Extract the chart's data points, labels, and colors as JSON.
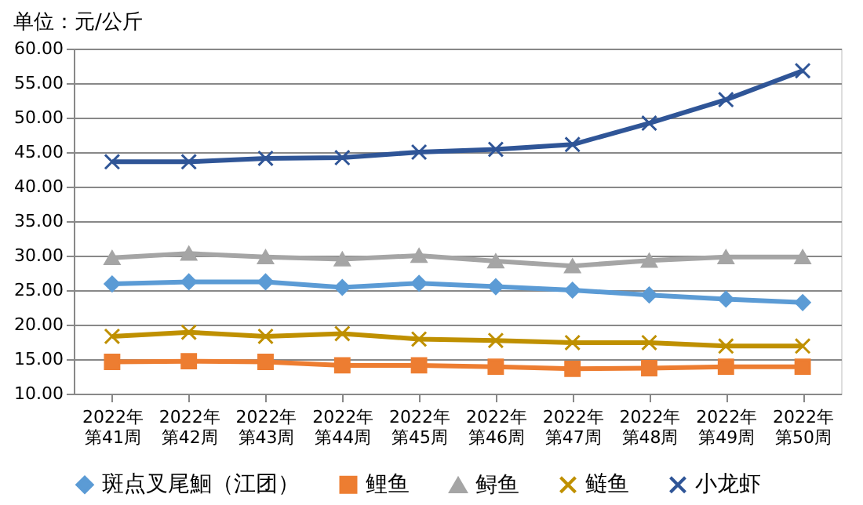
{
  "chart_data": {
    "type": "line",
    "title": "单位：元/公斤",
    "categories": [
      "2022年第41周",
      "2022年第42周",
      "2022年第43周",
      "2022年第44周",
      "2022年第45周",
      "2022年第46周",
      "2022年第47周",
      "2022年第48周",
      "2022年第49周",
      "2022年第50周"
    ],
    "series": [
      {
        "name": "斑点叉尾鮰（江团）",
        "color": "#5b9bd5",
        "marker": "diamond",
        "values": [
          25.9,
          26.2,
          26.2,
          25.4,
          26.0,
          25.5,
          25.0,
          24.3,
          23.7,
          23.2
        ]
      },
      {
        "name": "鲤鱼",
        "color": "#ed7d31",
        "marker": "square",
        "values": [
          14.6,
          14.7,
          14.6,
          14.1,
          14.1,
          13.9,
          13.6,
          13.7,
          13.9,
          13.9
        ]
      },
      {
        "name": "鲟鱼",
        "color": "#a5a5a5",
        "marker": "triangle",
        "values": [
          29.7,
          30.3,
          29.8,
          29.5,
          30.0,
          29.2,
          28.5,
          29.3,
          29.8,
          29.8
        ]
      },
      {
        "name": "鲢鱼",
        "color": "#bf9000",
        "marker": "cross",
        "values": [
          18.3,
          18.9,
          18.3,
          18.7,
          17.9,
          17.7,
          17.4,
          17.4,
          16.9,
          16.9
        ]
      },
      {
        "name": "小龙虾",
        "color": "#2f5597",
        "marker": "cross",
        "values": [
          43.6,
          43.6,
          44.1,
          44.2,
          45.0,
          45.4,
          46.1,
          49.2,
          52.6,
          56.8
        ]
      }
    ],
    "ylim": [
      10,
      60
    ],
    "yticks": [
      {
        "value": 10,
        "label": "10.00"
      },
      {
        "value": 15,
        "label": "15.00"
      },
      {
        "value": 20,
        "label": "20.00"
      },
      {
        "value": 25,
        "label": "25.00"
      },
      {
        "value": 30,
        "label": "30.00"
      },
      {
        "value": 35,
        "label": "35.00"
      },
      {
        "value": 40,
        "label": "40.00"
      },
      {
        "value": 45,
        "label": "45.00"
      },
      {
        "value": 50,
        "label": "50.00"
      },
      {
        "value": 55,
        "label": "55.00"
      },
      {
        "value": 60,
        "label": "60.00"
      }
    ],
    "grid": "y",
    "legend": "bottom",
    "line_style": "solid"
  }
}
